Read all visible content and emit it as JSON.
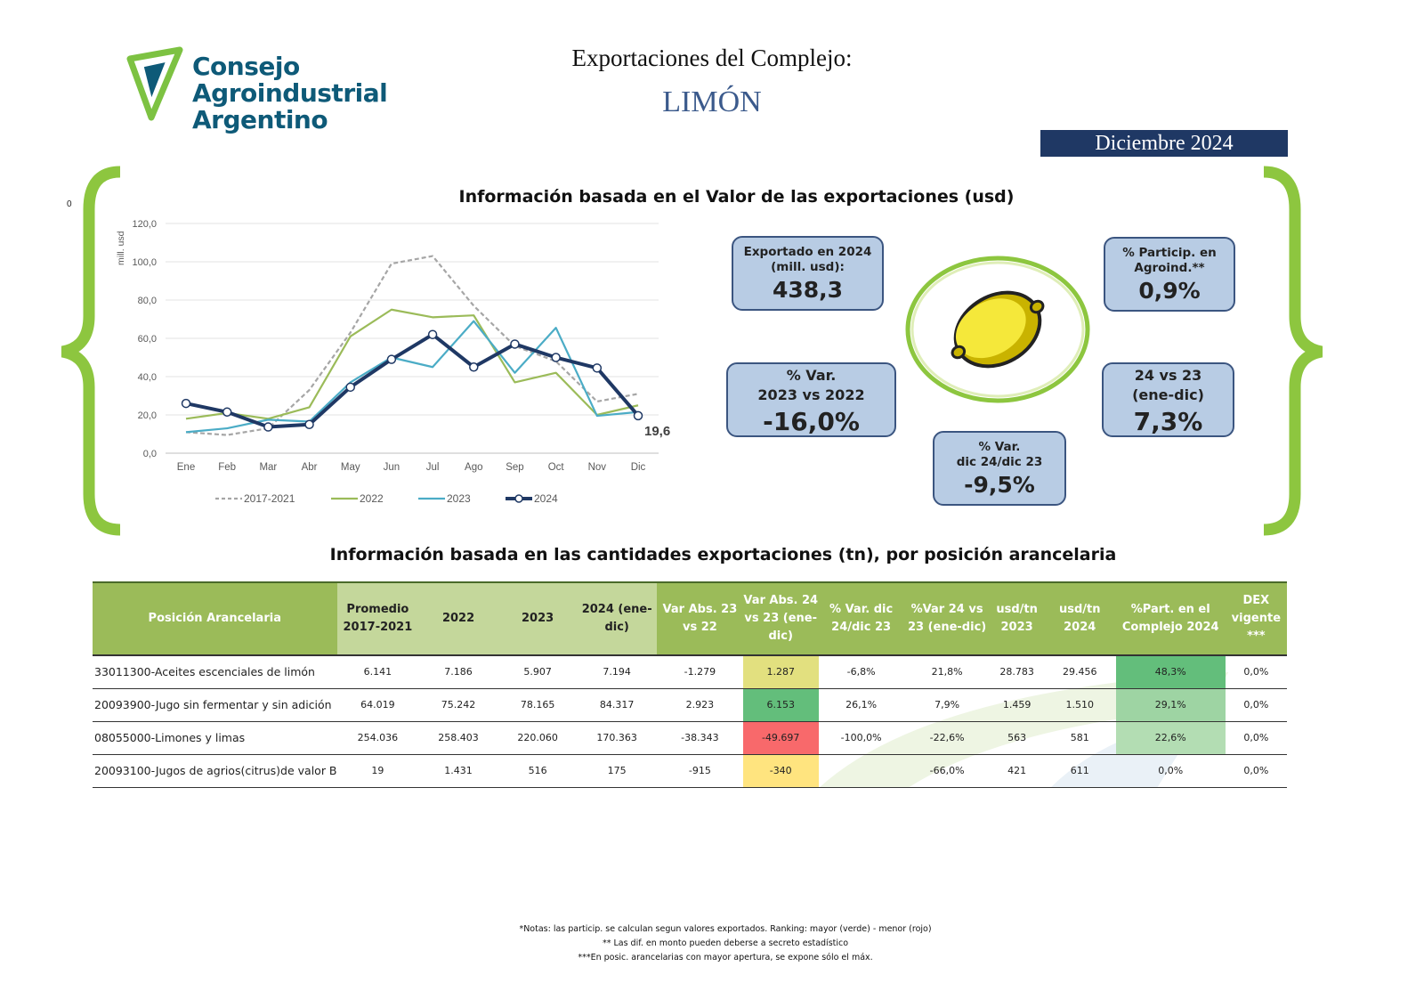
{
  "logo": {
    "line1": "Consejo",
    "line2": "Agroindustrial",
    "line3": "Argentino"
  },
  "header": {
    "title": "Exportaciones del Complejo:",
    "product": "LIMÓN",
    "period": "Diciembre 2024"
  },
  "stray_mark": "0",
  "value_section": {
    "title": "Información basada en el Valor de las exportaciones (usd)"
  },
  "kpis": {
    "exported": {
      "label1": "Exportado en 2024",
      "label2": "(mill. usd):",
      "value": "438,3"
    },
    "particip": {
      "label1": "% Particip. en",
      "label2": "Agroind.**",
      "value": "0,9%"
    },
    "var2322": {
      "label1": "% Var.",
      "label2": "2023 vs 2022",
      "value": "-16,0%"
    },
    "var2423": {
      "label1": "24 vs 23",
      "label2": "(ene-dic)",
      "value": "7,3%"
    },
    "vardic": {
      "label1": "% Var.",
      "label2": "dic 24/dic 23",
      "value": "-9,5%"
    }
  },
  "chart_data": {
    "type": "line",
    "ylabel": "mill. usd",
    "ylim": [
      0,
      120
    ],
    "yticks": [
      "0,0",
      "20,0",
      "40,0",
      "60,0",
      "80,0",
      "100,0",
      "120,0"
    ],
    "categories": [
      "Ene",
      "Feb",
      "Mar",
      "Abr",
      "May",
      "Jun",
      "Jul",
      "Ago",
      "Sep",
      "Oct",
      "Nov",
      "Dic"
    ],
    "series": [
      {
        "name": "2017-2021",
        "color": "#a6a6a6",
        "dashed": true,
        "values": [
          11,
          9.5,
          13,
          33,
          63,
          99,
          103,
          77,
          56,
          48,
          27,
          31
        ]
      },
      {
        "name": "2022",
        "color": "#9bbb59",
        "values": [
          18,
          21,
          18,
          24,
          61,
          75,
          71,
          72,
          37,
          42,
          20,
          25
        ]
      },
      {
        "name": "2023",
        "color": "#4bacc6",
        "values": [
          11,
          13,
          17.5,
          16.5,
          37,
          50,
          45,
          69,
          42,
          65.5,
          19.5,
          21.5
        ]
      },
      {
        "name": "2024",
        "color": "#1f3864",
        "markers": true,
        "values": [
          26,
          21.5,
          13.7,
          15,
          34.5,
          49,
          62,
          45,
          57,
          50,
          44.5,
          19.6
        ]
      }
    ],
    "last_label": "19,6",
    "legend": "bottom"
  },
  "qty_section": {
    "title": "Información basada en las cantidades exportaciones (tn), por posición arancelaria"
  },
  "table": {
    "headers": [
      "Posición Arancelaria",
      "Promedio 2017-2021",
      "2022",
      "2023",
      "2024 (ene-dic)",
      "Var Abs. 23 vs 22",
      "Var Abs. 24 vs 23 (ene-dic)",
      "% Var. dic 24/dic 23",
      "%Var 24 vs 23 (ene-dic)",
      "usd/tn 2023",
      "usd/tn 2024",
      "%Part. en el Complejo 2024",
      "DEX vigente ***"
    ],
    "rows": [
      [
        "33011300-Aceites escenciales de limón",
        "6.141",
        "7.186",
        "5.907",
        "7.194",
        "-1.279",
        "1.287",
        "-6,8%",
        "21,8%",
        "28.783",
        "29.456",
        "48,3%",
        "0,0%"
      ],
      [
        "20093900-Jugo sin fermentar y sin adición",
        "64.019",
        "75.242",
        "78.165",
        "84.317",
        "2.923",
        "6.153",
        "26,1%",
        "7,9%",
        "1.459",
        "1.510",
        "29,1%",
        "0,0%"
      ],
      [
        "08055000-Limones y limas",
        "254.036",
        "258.403",
        "220.060",
        "170.363",
        "-38.343",
        "-49.697",
        "-100,0%",
        "-22,6%",
        "563",
        "581",
        "22,6%",
        "0,0%"
      ],
      [
        "20093100-Jugos de agrios(citrus)de valor B",
        "19",
        "1.431",
        "516",
        "175",
        "-915",
        "-340",
        "",
        "-66,0%",
        "421",
        "611",
        "0,0%",
        "0,0%"
      ]
    ],
    "varabs_colors": [
      "#e2e07f",
      "#63be7b",
      "#f8696b",
      "#ffe47f"
    ],
    "part_colors": [
      "#63be7b",
      "#9ed4a3",
      "#b3ddb3",
      "transparent"
    ]
  },
  "notes": [
    "*Notas: las particip. se calculan segun valores exportados. Ranking: mayor (verde) - menor (rojo)",
    "** Las dif. en monto pueden deberse a secreto estadístico",
    "***En posic. arancelarias con mayor apertura, se expone sólo el máx."
  ]
}
